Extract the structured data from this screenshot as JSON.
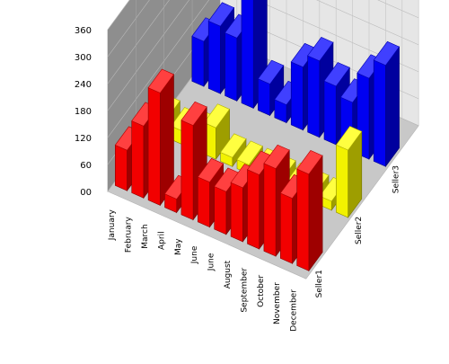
{
  "chart_data": {
    "type": "bar",
    "style": "3d-clustered-depth",
    "title": "",
    "xlabel": "",
    "ylabel": "",
    "ylim": [
      0,
      360
    ],
    "y_ticks": [
      "00",
      "60",
      "120",
      "180",
      "240",
      "300",
      "360"
    ],
    "grid": true,
    "legend": "none",
    "categories": [
      "January",
      "February",
      "March",
      "April",
      "May",
      "June",
      "June",
      "August",
      "September",
      "October",
      "November",
      "December"
    ],
    "series": [
      {
        "name": "Seller1",
        "color": "#ff0000",
        "values": [
          90,
          160,
          250,
          30,
          210,
          100,
          95,
          120,
          165,
          195,
          145,
          215
        ]
      },
      {
        "name": "Seller2",
        "color": "#ffff00",
        "values": [
          40,
          30,
          40,
          70,
          20,
          20,
          20,
          20,
          20,
          20,
          20,
          150
        ]
      },
      {
        "name": "Seller3",
        "color": "#0000ff",
        "values": [
          100,
          150,
          140,
          270,
          70,
          40,
          140,
          170,
          130,
          110,
          180,
          225
        ]
      }
    ]
  }
}
